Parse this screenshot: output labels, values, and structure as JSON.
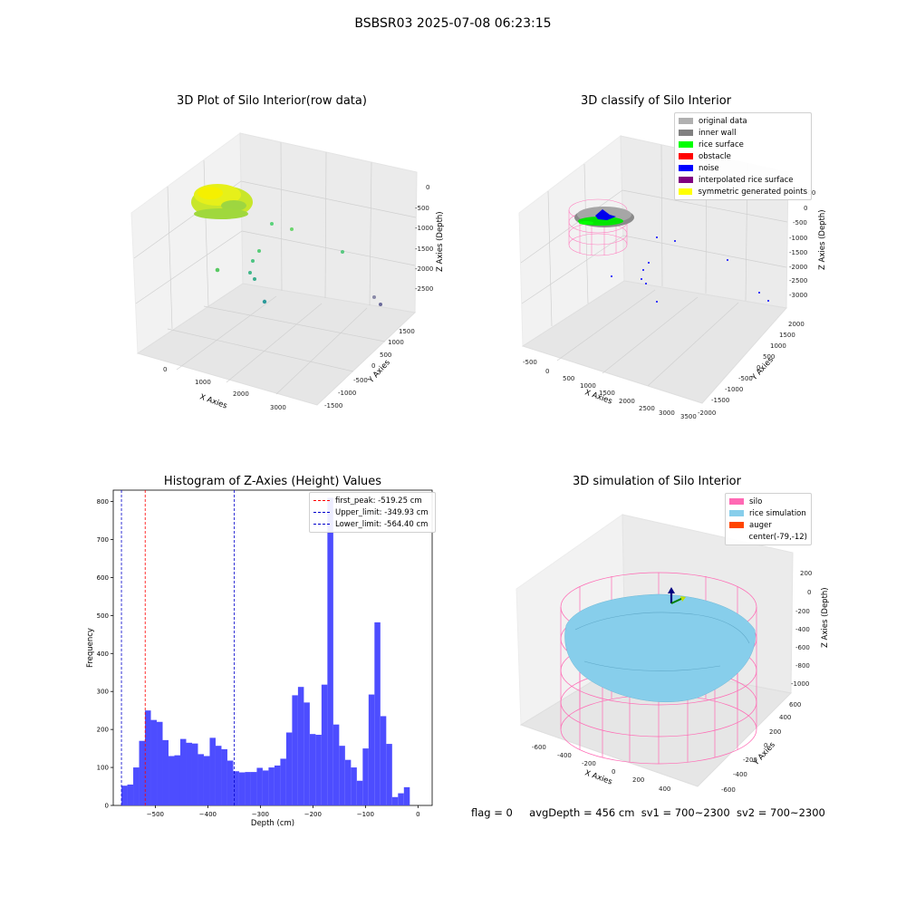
{
  "suptitle": "BSBSR03 2025-07-08 06:23:15",
  "panels": {
    "raw": {
      "title": "3D Plot of Silo Interior(row data)",
      "xlabel": "X Axies",
      "ylabel": "Y Axies",
      "zlabel": "Z Axies (Depth)",
      "xticks": [
        "0",
        "1000",
        "2000",
        "3000"
      ],
      "yticks": [
        "1500",
        "1000",
        "500",
        "0",
        "-500",
        "-1000",
        "-1500"
      ],
      "zticks": [
        "0",
        "-500",
        "-1000",
        "-1500",
        "-2000",
        "-2500"
      ]
    },
    "classify": {
      "title": "3D classify of Silo Interior",
      "xlabel": "X Axies",
      "ylabel": "Y Axies",
      "zlabel": "Z Axies (Depth)",
      "xticks": [
        "-500",
        "0",
        "500",
        "1000",
        "1500",
        "2000",
        "2500",
        "3000",
        "3500"
      ],
      "yticks": [
        "2000",
        "1500",
        "1000",
        "500",
        "0",
        "-500",
        "-1000",
        "-1500",
        "-2000"
      ],
      "zticks": [
        "500",
        "0",
        "-500",
        "-1000",
        "-1500",
        "-2000",
        "-2500",
        "-3000"
      ],
      "legend": [
        {
          "label": "original data",
          "color": "#b0b0b0"
        },
        {
          "label": "inner wall",
          "color": "#808080"
        },
        {
          "label": "rice surface",
          "color": "#00ff00"
        },
        {
          "label": "obstacle",
          "color": "#ff0000"
        },
        {
          "label": "noise",
          "color": "#0000ff"
        },
        {
          "label": "interpolated rice surface",
          "color": "#800080"
        },
        {
          "label": "symmetric generated points",
          "color": "#ffff00"
        }
      ]
    },
    "simulation": {
      "title": "3D simulation of Silo Interior",
      "xlabel": "X Axies",
      "ylabel": "Y Axies",
      "zlabel": "Z Axies (Depth)",
      "xticks": [
        "-600",
        "-400",
        "-200",
        "0",
        "200",
        "400"
      ],
      "yticks": [
        "600",
        "400",
        "200",
        "0",
        "-200",
        "-400",
        "-600"
      ],
      "zticks": [
        "200",
        "0",
        "-200",
        "-400",
        "-600",
        "-800",
        "-1000"
      ],
      "legend": [
        {
          "label": "silo",
          "color": "#ff69b4"
        },
        {
          "label": "rice simulation",
          "color": "#87ceeb"
        },
        {
          "label": "auger",
          "color": "#ff4500"
        },
        {
          "label": "center(-79,-12)",
          "color": ""
        }
      ]
    }
  },
  "footer": {
    "flag": "flag = 0",
    "avg": "avgDepth = 456 cm",
    "sv1": "sv1 = 700~2300",
    "sv2": "sv2 = 700~2300"
  },
  "chart_data": {
    "type": "bar",
    "title": "Histogram of Z-Axies (Height) Values",
    "xlabel": "Depth (cm)",
    "ylabel": "Frequency",
    "xlim": [
      -580,
      27
    ],
    "ylim": [
      0,
      830
    ],
    "xticks": [
      -500,
      -400,
      -300,
      -200,
      -100,
      0
    ],
    "yticks": [
      0,
      100,
      200,
      300,
      400,
      500,
      600,
      700,
      800
    ],
    "bin_start": -564.4,
    "bin_width": 11.2,
    "color": "#4d4dff",
    "values": [
      52,
      55,
      100,
      170,
      250,
      225,
      220,
      172,
      130,
      132,
      175,
      165,
      163,
      135,
      130,
      178,
      157,
      148,
      118,
      90,
      87,
      88,
      88,
      99,
      92,
      100,
      105,
      123,
      192,
      290,
      312,
      271,
      188,
      186,
      318,
      810,
      213,
      157,
      120,
      100,
      65,
      150,
      292,
      482,
      235,
      162,
      22,
      32,
      48
    ],
    "lines": [
      {
        "label": "first_peak: -519.25 cm",
        "x": -519.25,
        "color": "#ff0000"
      },
      {
        "label": "Upper_limit: -349.93 cm",
        "x": -349.93,
        "color": "#0000cc"
      },
      {
        "label": "Lower_limit: -564.40 cm",
        "x": -564.4,
        "color": "#0000cc"
      }
    ],
    "legend_position": "upper right"
  }
}
